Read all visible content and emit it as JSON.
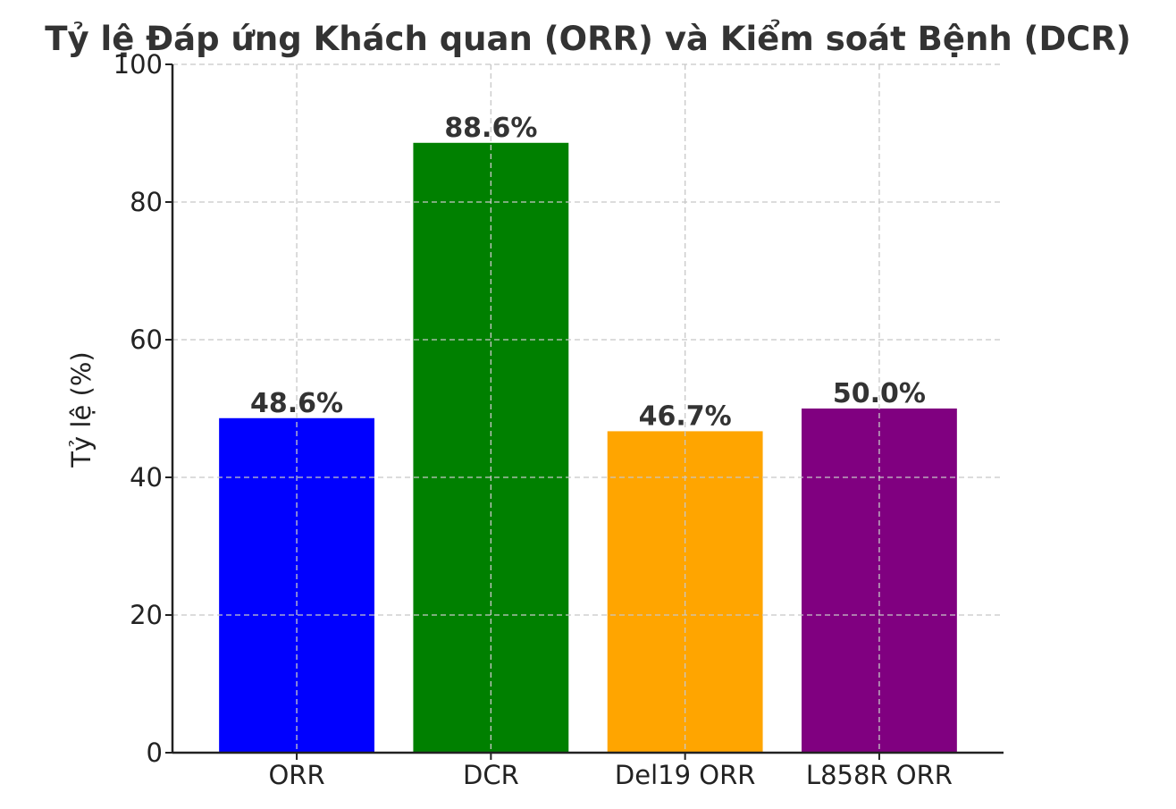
{
  "chart_data": {
    "type": "bar",
    "title": "Tỷ lệ Đáp ứng Khách quan (ORR) và Kiểm soát Bệnh (DCR)",
    "xlabel": "",
    "ylabel": "Tỷ lệ (%)",
    "categories": [
      "ORR",
      "DCR",
      "Del19 ORR",
      "L858R ORR"
    ],
    "values": [
      48.6,
      88.6,
      46.7,
      50.0
    ],
    "value_labels": [
      "48.6%",
      "88.6%",
      "46.7%",
      "50.0%"
    ],
    "colors": [
      "#0000ff",
      "#008000",
      "#ffa500",
      "#800080"
    ],
    "ylim": [
      0,
      100
    ],
    "yticks": [
      0,
      20,
      40,
      60,
      80,
      100
    ],
    "ytick_labels": [
      "0",
      "20",
      "40",
      "60",
      "80",
      "100"
    ],
    "grid": true,
    "legend": "none"
  }
}
